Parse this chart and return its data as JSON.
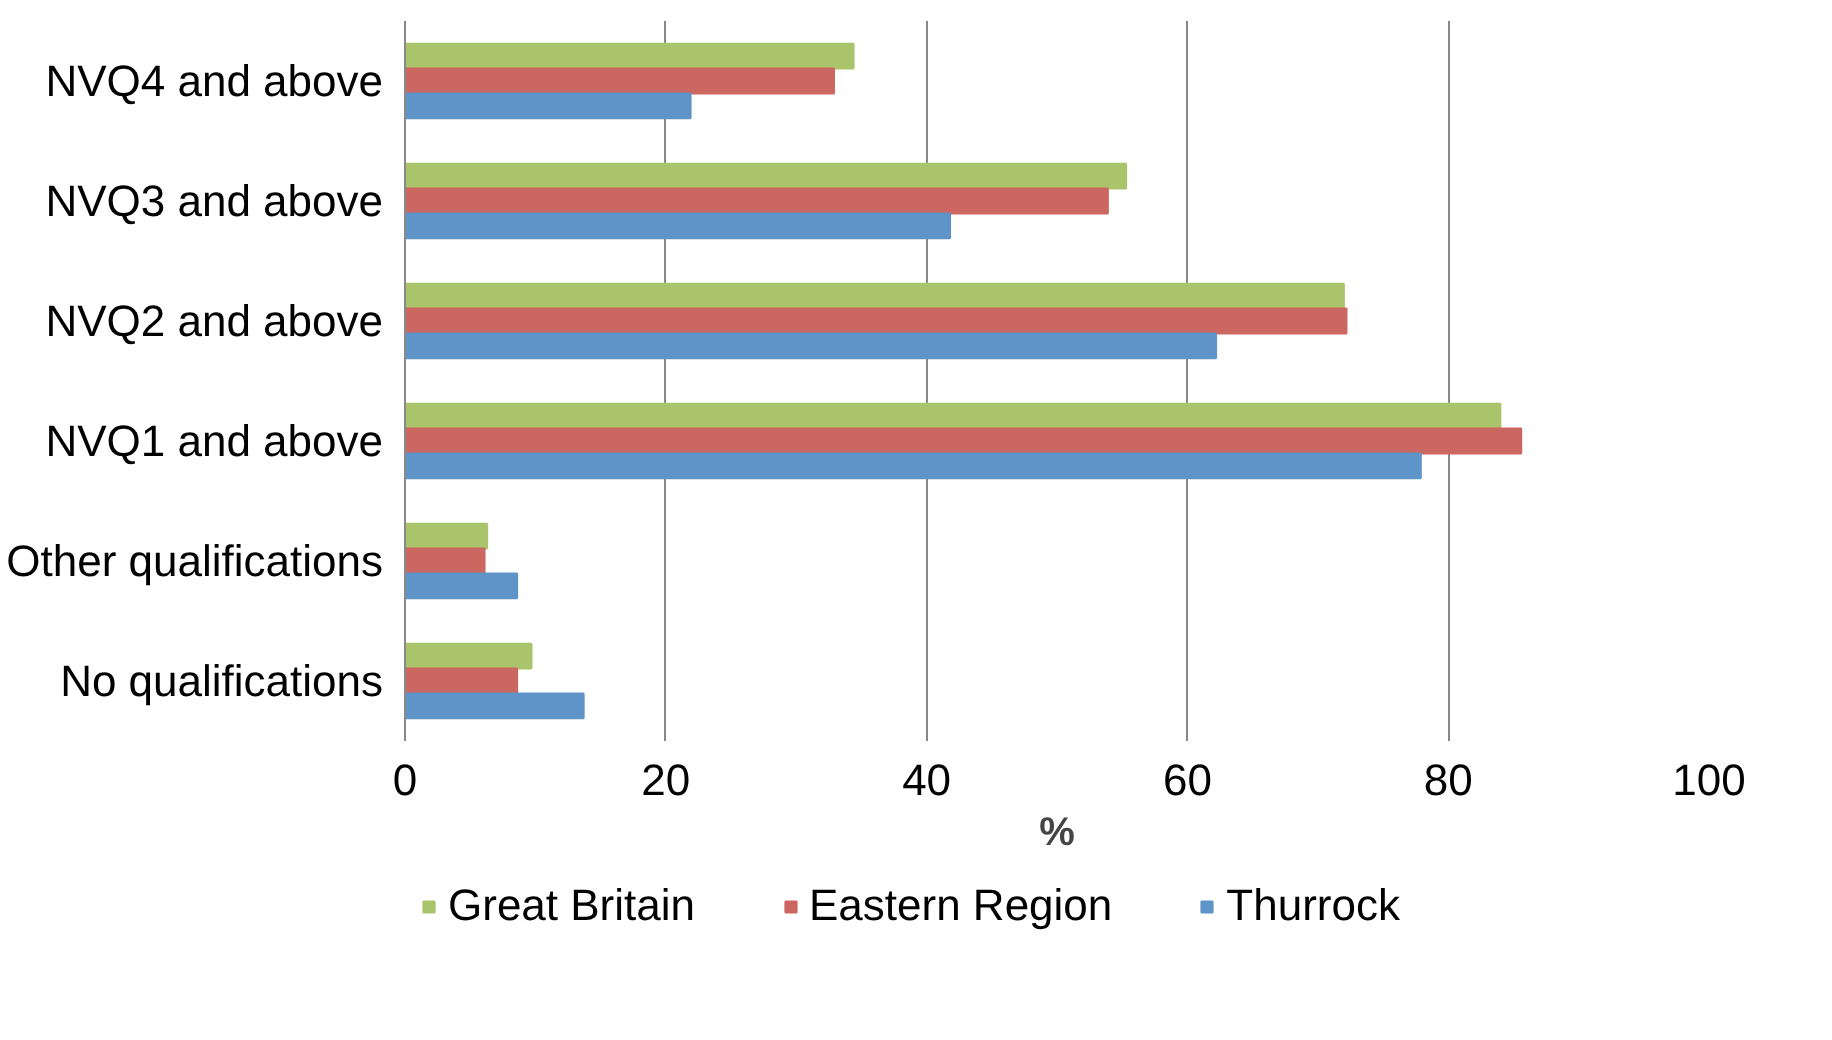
{
  "chart_data": {
    "type": "bar",
    "orientation": "horizontal",
    "xlabel": "%",
    "categories": [
      "NVQ4 and above",
      "NVQ3 and above",
      "NVQ2 and above",
      "NVQ1 and above",
      "Other qualifications",
      "No qualifications"
    ],
    "series": [
      {
        "name": "Great Britain",
        "color": "#a9c46b",
        "values": [
          34.4,
          55.3,
          72.0,
          84.0,
          6.3,
          9.7
        ]
      },
      {
        "name": "Eastern Region",
        "color": "#cc6660",
        "values": [
          32.9,
          53.9,
          72.2,
          85.6,
          6.1,
          8.6
        ]
      },
      {
        "name": "Thurrock",
        "color": "#5f94c8",
        "values": [
          21.9,
          41.8,
          62.2,
          77.9,
          8.6,
          13.7
        ]
      }
    ],
    "xlim": [
      0,
      100
    ],
    "xticks": [
      0,
      20,
      40,
      60,
      80,
      100
    ],
    "grid": "x",
    "legend": "bottom"
  }
}
